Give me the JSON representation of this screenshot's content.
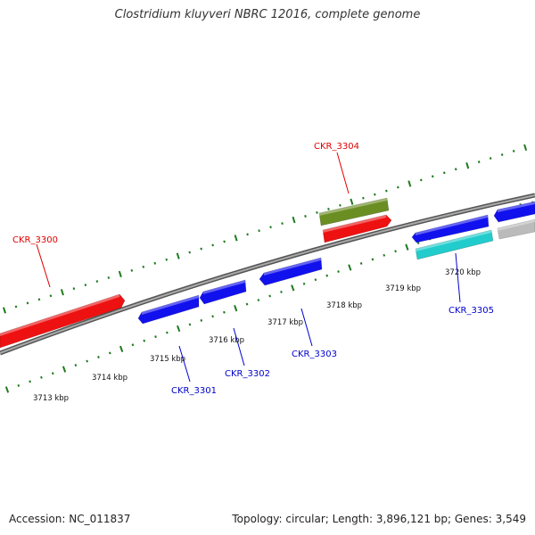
{
  "title": "Clostridium kluyveri NBRC 12016, complete genome",
  "footer": {
    "accession": "Accession: NC_011837",
    "topology": "Topology: circular; Length: 3,896,121 bp; Genes: 3,549"
  },
  "colors": {
    "backbone": "#888888",
    "tick": "#1f7a1f",
    "label_forward": "#e00000",
    "label_reverse": "#0000cc",
    "kbp_text": "#111111"
  },
  "kbp_labels": [
    "3713 kbp",
    "3714 kbp",
    "3715 kbp",
    "3716 kbp",
    "3717 kbp",
    "3718 kbp",
    "3719 kbp",
    "3720 kbp"
  ],
  "genes": [
    {
      "id": "CKR_3300",
      "strand": "+",
      "color": "#ee1111",
      "labeled": true
    },
    {
      "id": "CKR_3301",
      "strand": "-",
      "color": "#1111ee",
      "labeled": true
    },
    {
      "id": "CKR_3302",
      "strand": "-",
      "color": "#1111ee",
      "labeled": true
    },
    {
      "id": "CKR_3303",
      "strand": "-",
      "color": "#1111ee",
      "labeled": true
    },
    {
      "id": "CKR_3304",
      "strand": "+",
      "color": "#ee1111",
      "labeled": true
    },
    {
      "id": "CKR_3304-feature",
      "strand": "+",
      "color": "#6b8e23",
      "labeled": false
    },
    {
      "id": "CKR_3305",
      "strand": "-",
      "color": "#1111ee",
      "labeled": true
    },
    {
      "id": "CKR_3305-feature",
      "strand": "-",
      "color": "#22cccc",
      "labeled": false
    },
    {
      "id": "next-gene",
      "strand": "-",
      "color": "#1111ee",
      "labeled": false
    },
    {
      "id": "next-feature",
      "strand": "-",
      "color": "#bbbbbb",
      "labeled": false
    }
  ]
}
